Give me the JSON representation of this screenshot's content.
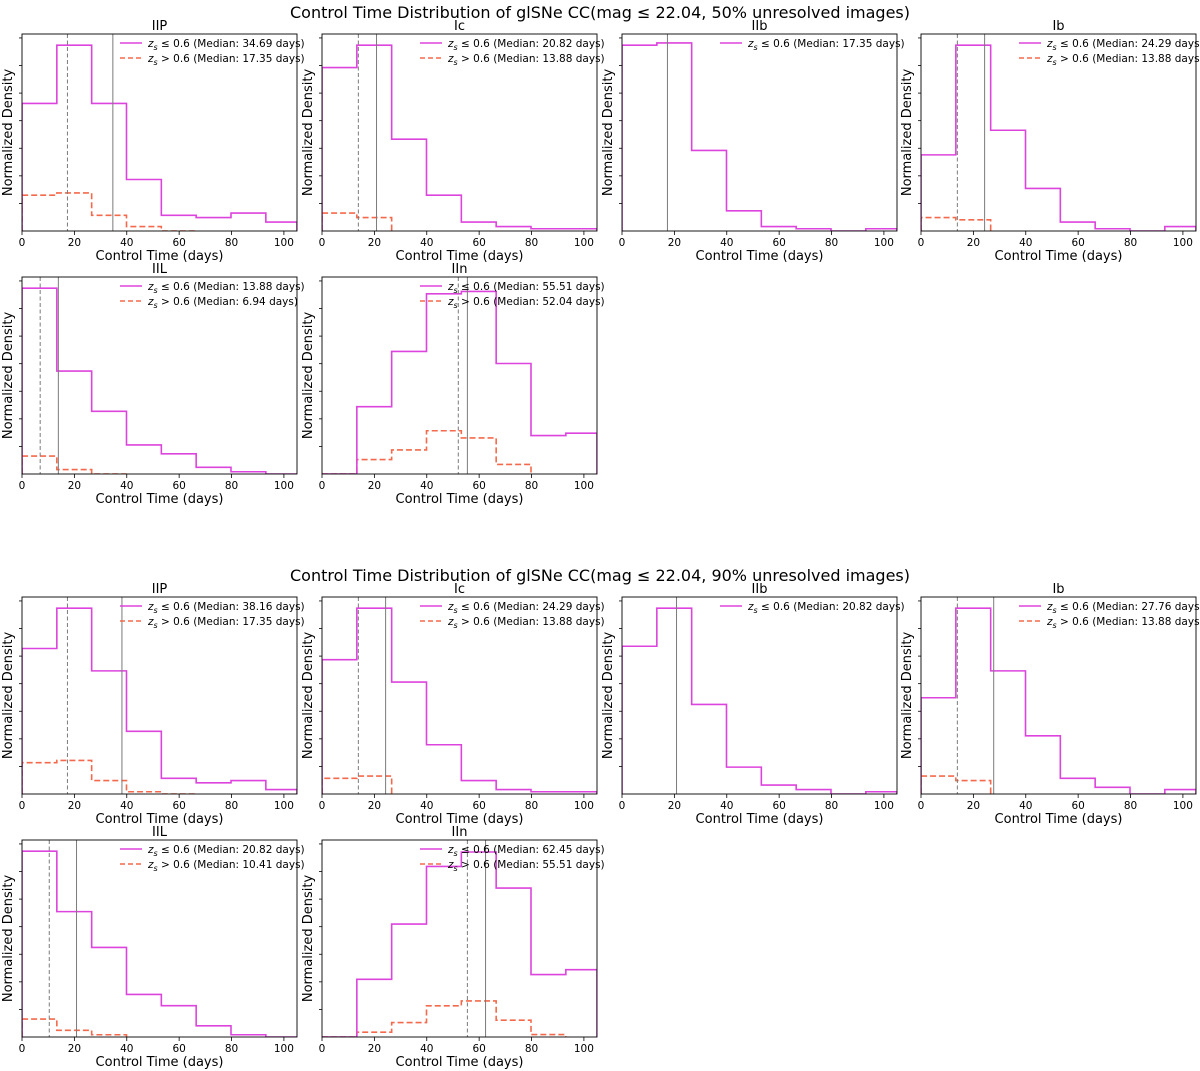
{
  "figure": {
    "xlabel": "Control Time (days)",
    "ylabel": "Normalized Density",
    "xticks": [
      0,
      20,
      40,
      60,
      80,
      100
    ],
    "xlim": [
      0,
      105
    ],
    "bin_edges": [
      0,
      13.3,
      26.6,
      39.9,
      53.2,
      66.5,
      79.8,
      93.1,
      106.4
    ],
    "legend_symbol_z": "z",
    "legend_symbol_s": "s",
    "low_label": "≤ 0.6 (Median: ",
    "high_label": "> 0.6 (Median: ",
    "median_unit": " days)",
    "colors": {
      "low": "#dd44dd",
      "high": "#f4694b",
      "median_low": "#7a7a7a",
      "median_high": "#7a7a7a"
    }
  },
  "chart_data": [
    {
      "type": "step-histogram",
      "title": "Control Time Distribution of glSNe CC(mag ≤ 22.04, 50% unresolved images)",
      "panels": [
        {
          "title": "IIP",
          "ylim": [
            0,
            0.088
          ],
          "low": {
            "values": [
              0.057,
              0.083,
              0.057,
              0.023,
              0.007,
              0.006,
              0.008,
              0.004
            ],
            "median": 34.69
          },
          "high": {
            "values": [
              0.016,
              0.017,
              0.007,
              0.002,
              0.0
            ],
            "median": 17.35
          }
        },
        {
          "title": "Ic",
          "ylim": [
            0,
            0.088
          ],
          "low": {
            "values": [
              0.073,
              0.083,
              0.041,
              0.016,
              0.004,
              0.002,
              0.001,
              0.001
            ],
            "median": 20.82
          },
          "high": {
            "values": [
              0.008,
              0.006
            ],
            "median": 13.88
          }
        },
        {
          "title": "IIb",
          "ylim": [
            0,
            0.088
          ],
          "low": {
            "values": [
              0.083,
              0.084,
              0.036,
              0.009,
              0.002,
              0.001,
              0.0,
              0.001
            ],
            "median": 17.35
          },
          "high": null
        },
        {
          "title": "Ib",
          "ylim": [
            0,
            0.088
          ],
          "low": {
            "values": [
              0.034,
              0.083,
              0.045,
              0.019,
              0.004,
              0.001,
              0.0,
              0.002
            ],
            "median": 24.29
          },
          "high": {
            "values": [
              0.006,
              0.005
            ],
            "median": 13.88
          }
        },
        {
          "title": "IIL",
          "ylim": [
            0,
            0.088
          ],
          "low": {
            "values": [
              0.083,
              0.046,
              0.028,
              0.013,
              0.009,
              0.003,
              0.001,
              0.0
            ],
            "median": 13.88
          },
          "high": {
            "values": [
              0.008,
              0.002,
              0.0
            ],
            "median": 6.94
          }
        },
        {
          "title": "IIn",
          "ylim": [
            0,
            0.082
          ],
          "low": {
            "values": [
              0.0,
              0.028,
              0.051,
              0.075,
              0.076,
              0.046,
              0.016,
              0.017
            ],
            "median": 55.51
          },
          "high": {
            "values": [
              0.0,
              0.006,
              0.01,
              0.018,
              0.015,
              0.004
            ],
            "median": 52.04
          }
        }
      ]
    },
    {
      "type": "step-histogram",
      "title": "Control Time Distribution of glSNe CC(mag ≤ 22.04, 90% unresolved images)",
      "panels": [
        {
          "title": "IIP",
          "ylim": [
            0,
            0.088
          ],
          "low": {
            "values": [
              0.065,
              0.083,
              0.055,
              0.028,
              0.007,
              0.005,
              0.006,
              0.002
            ],
            "median": 38.16
          },
          "high": {
            "values": [
              0.014,
              0.015,
              0.006,
              0.001,
              0.0
            ],
            "median": 17.35
          }
        },
        {
          "title": "Ic",
          "ylim": [
            0,
            0.088
          ],
          "low": {
            "values": [
              0.06,
              0.083,
              0.05,
              0.022,
              0.006,
              0.002,
              0.001,
              0.001
            ],
            "median": 24.29
          },
          "high": {
            "values": [
              0.007,
              0.008
            ],
            "median": 13.88
          }
        },
        {
          "title": "IIb",
          "ylim": [
            0,
            0.088
          ],
          "low": {
            "values": [
              0.066,
              0.083,
              0.04,
              0.012,
              0.004,
              0.002,
              0.0,
              0.001
            ],
            "median": 20.82
          },
          "high": null
        },
        {
          "title": "Ib",
          "ylim": [
            0,
            0.088
          ],
          "low": {
            "values": [
              0.043,
              0.083,
              0.055,
              0.026,
              0.007,
              0.003,
              0.0,
              0.002
            ],
            "median": 27.76
          },
          "high": {
            "values": [
              0.008,
              0.006
            ],
            "median": 13.88
          }
        },
        {
          "title": "IIL",
          "ylim": [
            0,
            0.088
          ],
          "low": {
            "values": [
              0.083,
              0.056,
              0.04,
              0.019,
              0.014,
              0.005,
              0.001,
              0.0
            ],
            "median": 20.82
          },
          "high": {
            "values": [
              0.008,
              0.003,
              0.001
            ],
            "median": 10.41
          }
        },
        {
          "title": "IIn",
          "ylim": [
            0,
            0.082
          ],
          "low": {
            "values": [
              0.0,
              0.024,
              0.047,
              0.071,
              0.077,
              0.062,
              0.026,
              0.028
            ],
            "median": 62.45
          },
          "high": {
            "values": [
              0.0,
              0.002,
              0.006,
              0.013,
              0.015,
              0.007,
              0.001
            ],
            "median": 55.51
          }
        }
      ]
    }
  ]
}
